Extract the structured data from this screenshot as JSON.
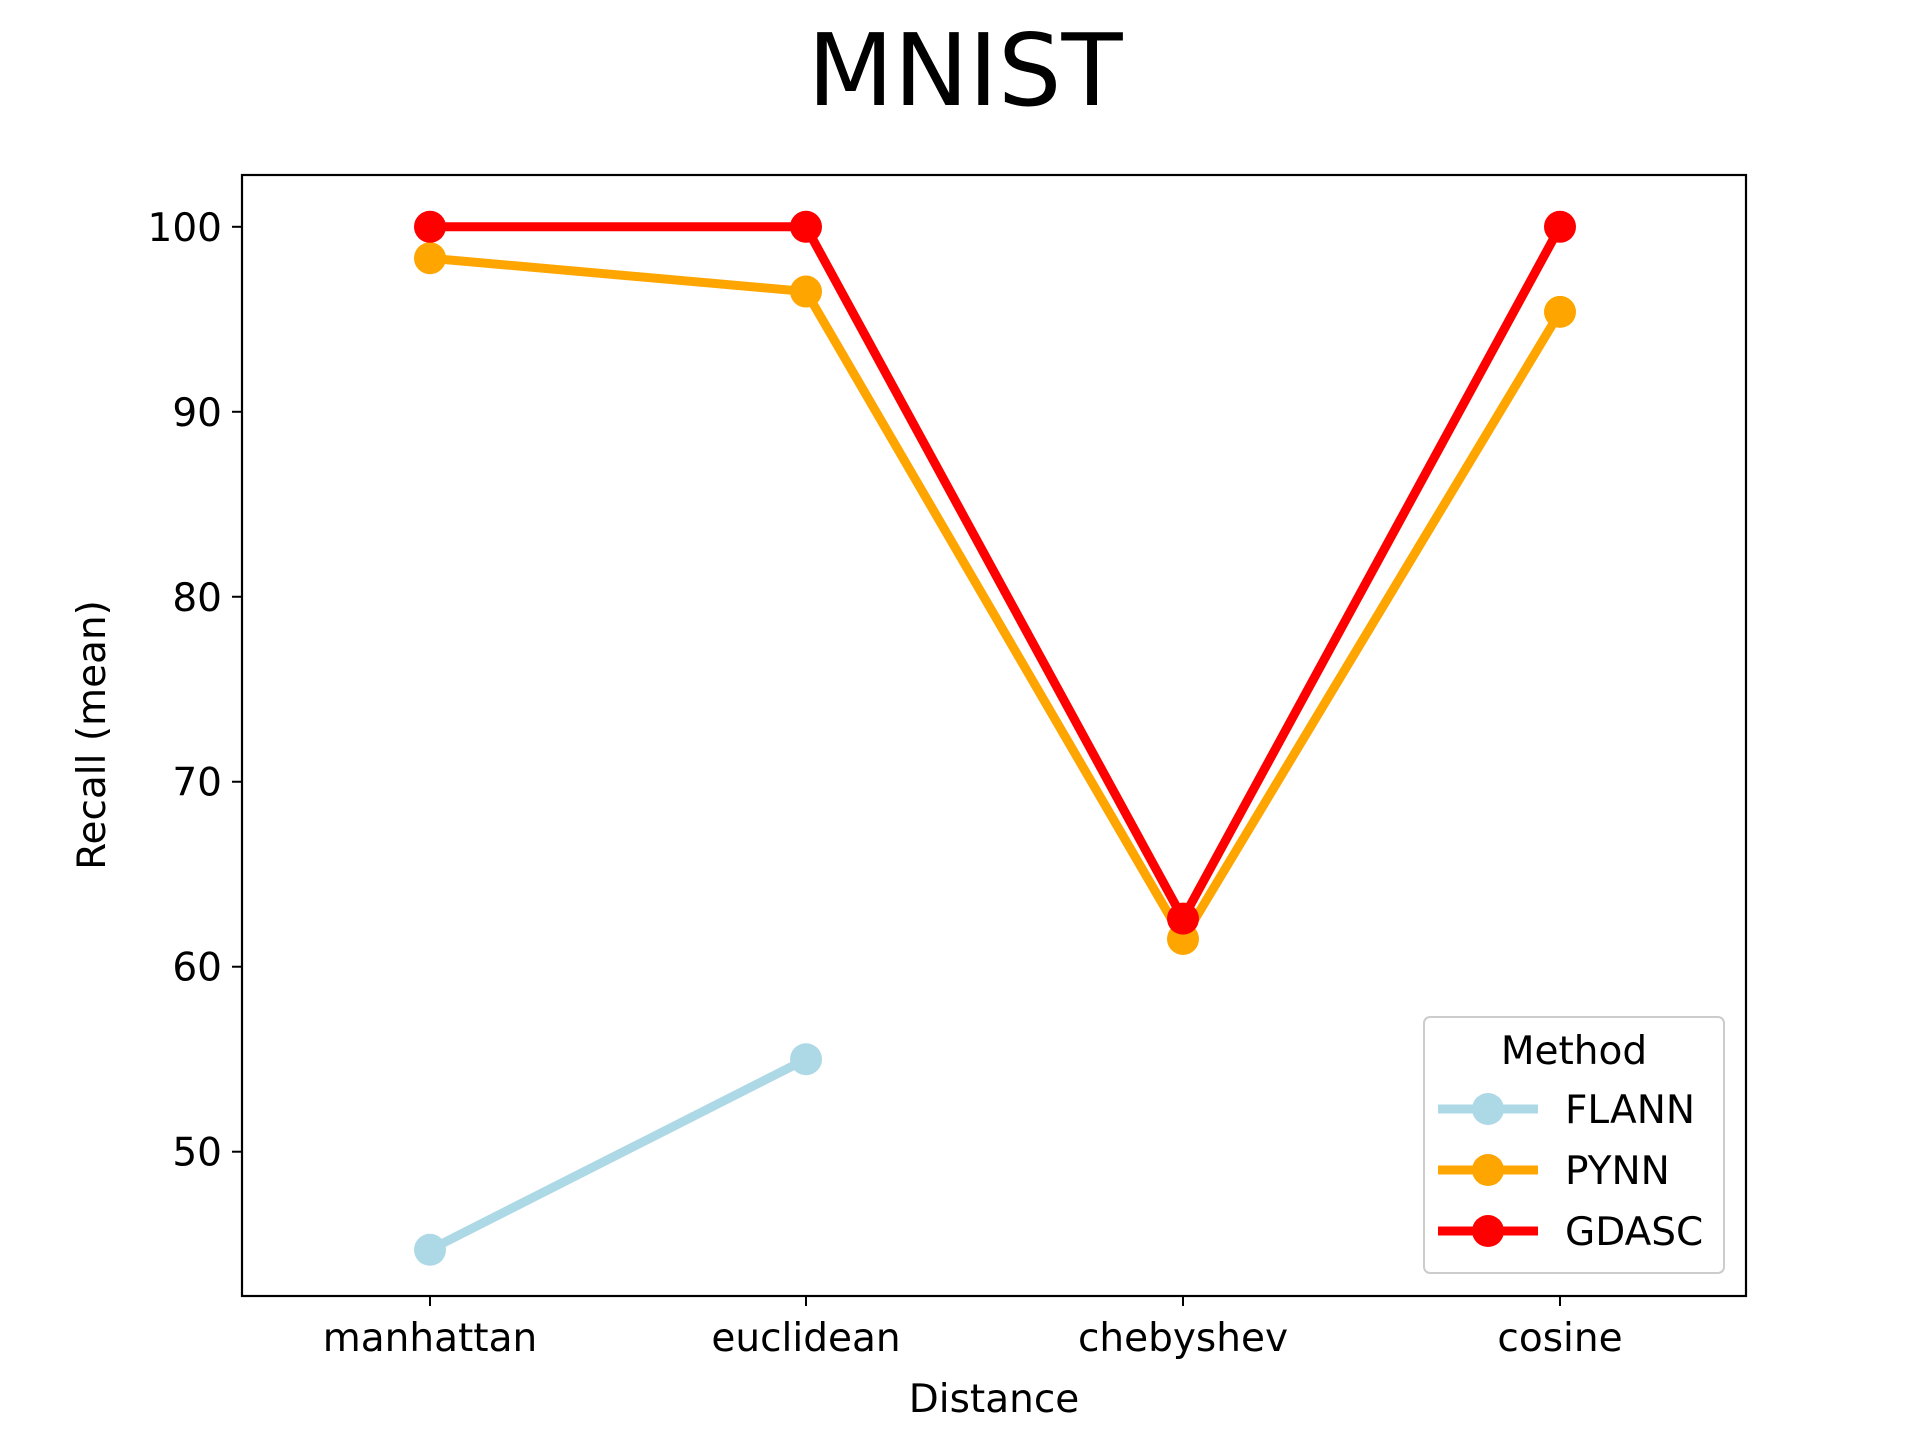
{
  "chart_data": {
    "type": "line",
    "title": "MNIST",
    "xlabel": "Distance",
    "ylabel": "Recall (mean)",
    "categories": [
      "manhattan",
      "euclidean",
      "chebyshev",
      "cosine"
    ],
    "yticks": [
      50,
      60,
      70,
      80,
      90,
      100
    ],
    "ylim": [
      42.2,
      102.8
    ],
    "grid": false,
    "legend": {
      "title": "Method",
      "placement": "lower-right"
    },
    "series": [
      {
        "name": "FLANN",
        "color": "#add8e6",
        "values": [
          44.7,
          55.0,
          null,
          null
        ]
      },
      {
        "name": "PYNN",
        "color": "#ffa500",
        "values": [
          98.3,
          96.5,
          61.5,
          95.4
        ]
      },
      {
        "name": "GDASC",
        "color": "#ff0000",
        "values": [
          100.0,
          100.0,
          62.6,
          100.0
        ]
      }
    ]
  }
}
